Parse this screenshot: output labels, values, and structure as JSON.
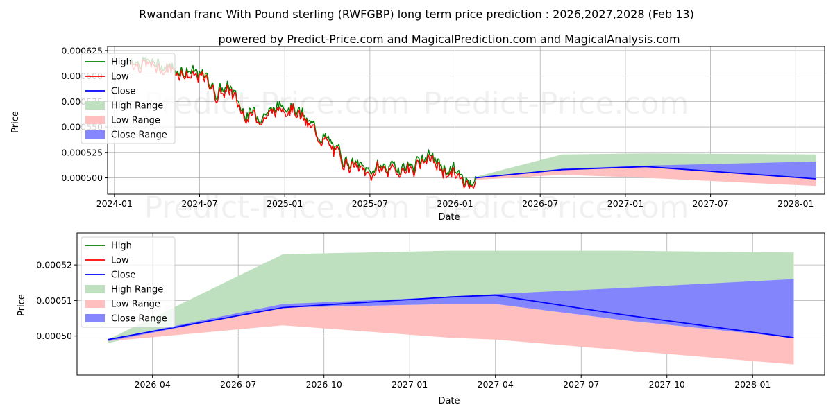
{
  "figure": {
    "title_line1": "Rwandan franc With Pound sterling (RWFGBP) long term price prediction : 2026,2027,2028 (Feb 13)",
    "title_line2": "powered by Predict-Price.com and MagicalPrediction.com and MagicalAnalysis.com",
    "watermark": "Predict-Price.com"
  },
  "colors": {
    "high": "#008000",
    "low": "#ff0000",
    "close": "#0000ff",
    "high_range": "#bfe0bf",
    "low_range": "#ffbfbf",
    "close_range": "#8080ff"
  },
  "chart_data": [
    {
      "type": "line",
      "panel": "top",
      "xlabel": "Date",
      "ylabel": "Price",
      "xlim": [
        2023.96,
        2028.17
      ],
      "ylim": [
        0.000484,
        0.000629
      ],
      "x_ticks": [
        2024.0,
        2024.5,
        2025.0,
        2025.5,
        2026.0,
        2026.5,
        2027.0,
        2027.5,
        2028.0
      ],
      "x_tick_labels": [
        "2024-01",
        "2024-07",
        "2025-01",
        "2025-07",
        "2026-01",
        "2026-07",
        "2027-01",
        "2027-07",
        "2028-01"
      ],
      "y_ticks": [
        0.0005,
        0.000525,
        0.00055,
        0.000575,
        0.0006,
        0.000625
      ],
      "y_tick_labels": [
        "0.000500",
        "0.000525",
        "0.000550",
        "0.000575",
        "0.000600",
        "0.000625"
      ],
      "grid": true,
      "legend": {
        "placement": "top-left",
        "entries": [
          "High",
          "Low",
          "Close",
          "High Range",
          "Low Range",
          "Close Range"
        ]
      },
      "historical": {
        "x_start": 2024.1,
        "x_end": 2026.12,
        "anchors_x": [
          2024.1,
          2024.25,
          2024.4,
          2024.55,
          2024.6,
          2024.68,
          2024.75,
          2024.85,
          2024.95,
          2025.0,
          2025.05,
          2025.15,
          2025.25,
          2025.3,
          2025.35,
          2025.45,
          2025.5,
          2025.55,
          2025.65,
          2025.75,
          2025.85,
          2025.9,
          2025.95,
          2026.0,
          2026.05,
          2026.12
        ],
        "anchors_y": [
          0.000615,
          0.00061,
          0.000605,
          0.000596,
          0.000582,
          0.000588,
          0.000565,
          0.00056,
          0.000566,
          0.000572,
          0.00057,
          0.00055,
          0.000535,
          0.000525,
          0.000518,
          0.000508,
          0.000505,
          0.00051,
          0.000508,
          0.000511,
          0.00052,
          0.000512,
          0.000507,
          0.000506,
          0.000494,
          0.0005
        ]
      },
      "forecast": {
        "x": [
          2026.12,
          2026.63,
          2027.12,
          2028.12
        ],
        "close": [
          0.0005,
          0.000508,
          0.000511,
          0.000499
        ],
        "high_upper": [
          0.000501,
          0.000523,
          0.000524,
          0.000523
        ],
        "low_lower": [
          0.000498,
          0.000503,
          0.0005,
          0.000492
        ],
        "close_upper": [
          0.0005,
          0.000509,
          0.000512,
          0.000516
        ]
      }
    },
    {
      "type": "line",
      "panel": "bottom",
      "xlabel": "Date",
      "ylabel": "Price",
      "xlim": [
        2026.03,
        2028.21
      ],
      "ylim": [
        0.000489,
        0.000529
      ],
      "x_ticks": [
        2026.25,
        2026.5,
        2026.75,
        2027.0,
        2027.25,
        2027.5,
        2027.75,
        2028.0
      ],
      "x_tick_labels": [
        "2026-04",
        "2026-07",
        "2026-10",
        "2027-01",
        "2027-04",
        "2027-07",
        "2027-10",
        "2028-01"
      ],
      "y_ticks": [
        0.0005,
        0.00051,
        0.00052
      ],
      "y_tick_labels": [
        "0.00050",
        "0.00051",
        "0.00052"
      ],
      "grid": true,
      "legend": {
        "placement": "top-left",
        "entries": [
          "High",
          "Low",
          "Close",
          "High Range",
          "Low Range",
          "Close Range"
        ]
      },
      "forecast": {
        "x": [
          2026.12,
          2026.63,
          2027.12,
          2027.25,
          2027.62,
          2028.12
        ],
        "close": [
          0.000499,
          0.000508,
          0.000511,
          0.0005115,
          0.000506,
          0.0004995
        ],
        "high_upper": [
          0.000499,
          0.000523,
          0.000524,
          0.000524,
          0.000524,
          0.0005235
        ],
        "high_lower": [
          0.000498,
          0.000509,
          0.000509,
          0.000509,
          0.000506,
          0.0005
        ],
        "close_upper": [
          0.000499,
          0.000509,
          0.000511,
          0.0005118,
          0.0005135,
          0.000516
        ],
        "close_lower": [
          0.0004985,
          0.000508,
          0.000509,
          0.000509,
          0.0005045,
          0.0004995
        ],
        "low_upper": [
          0.0004985,
          0.000508,
          0.000509,
          0.000509,
          0.0005045,
          0.0004995
        ],
        "low_lower": [
          0.0004985,
          0.000503,
          0.0004995,
          0.000499,
          0.000496,
          0.000492
        ]
      }
    }
  ]
}
